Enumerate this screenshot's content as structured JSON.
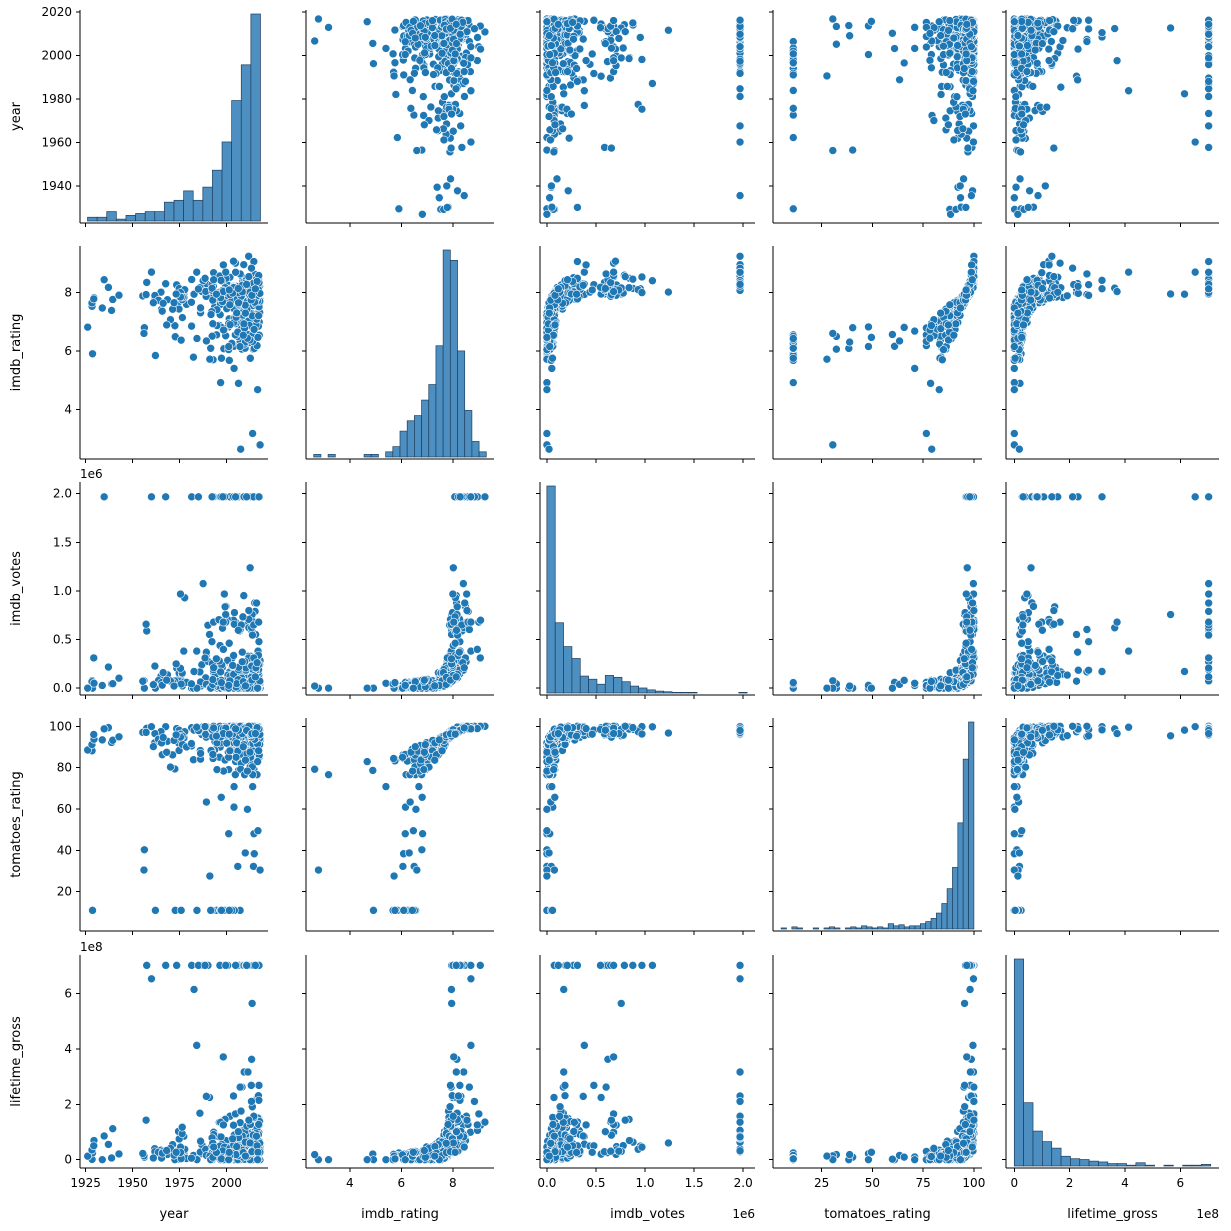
{
  "chart_data": {
    "type": "scatter",
    "layout": "pairplot",
    "variables": [
      "year",
      "imdb_rating",
      "imdb_votes",
      "tomatoes_rating",
      "lifetime_gross"
    ],
    "axes": {
      "year": {
        "range": [
          1922,
          2022
        ],
        "ticks": [
          1925,
          1950,
          1975,
          2000
        ],
        "tick_labels": [
          "1925",
          "1950",
          "1975",
          "2000"
        ],
        "diag_ticks": [
          1940,
          1960,
          1980,
          2000,
          2020
        ],
        "diag_tick_labels": [
          "1940",
          "1960",
          "1980",
          "2000",
          "2020"
        ],
        "diag_range": [
          1923,
          2021
        ],
        "offset": ""
      },
      "imdb_rating": {
        "range": [
          2.3,
          9.6
        ],
        "ticks": [
          4,
          6,
          8
        ],
        "tick_labels": [
          "4",
          "6",
          "8"
        ],
        "offset": ""
      },
      "imdb_votes": {
        "range": [
          -0.07,
          2.12
        ],
        "ticks": [
          0.0,
          0.5,
          1.0,
          1.5,
          2.0
        ],
        "tick_labels": [
          "0.0",
          "0.5",
          "1.0",
          "1.5",
          "2.0"
        ],
        "offset": "1e6"
      },
      "tomatoes_rating": {
        "range": [
          1,
          104
        ],
        "ticks": [
          20,
          40,
          60,
          80,
          100
        ],
        "tick_labels": [
          "20",
          "40",
          "60",
          "80",
          "100"
        ],
        "xticks": [
          25,
          50,
          75,
          100
        ],
        "xtick_labels": [
          "25",
          "50",
          "75",
          "100"
        ],
        "offset": ""
      },
      "lifetime_gross": {
        "range": [
          -0.3,
          7.4
        ],
        "ticks": [
          0,
          2,
          4,
          6
        ],
        "tick_labels": [
          "0",
          "2",
          "4",
          "6"
        ],
        "offset": "1e8"
      }
    },
    "histograms": {
      "year": {
        "start": 1926,
        "end": 2018,
        "counts": [
          2,
          2,
          5,
          1,
          3,
          4,
          5,
          5,
          10,
          11,
          16,
          11,
          18,
          27,
          42,
          64,
          83,
          110
        ]
      },
      "imdb_rating": {
        "start": 2.6,
        "end": 9.3,
        "counts": [
          1,
          0,
          1,
          0,
          0,
          0,
          0,
          1,
          1,
          0,
          2,
          4,
          10,
          14,
          16,
          22,
          28,
          43,
          80,
          76,
          41,
          18,
          6,
          2
        ]
      },
      "imdb_votes": {
        "start": 0,
        "end": 2.04,
        "counts": [
          330,
          112,
          74,
          55,
          27,
          22,
          14,
          28,
          25,
          18,
          11,
          8,
          5,
          3,
          2,
          1,
          1,
          1,
          0,
          0,
          0,
          0,
          0,
          1
        ]
      },
      "tomatoes_rating": {
        "start": 5,
        "end": 100,
        "counts": [
          1,
          0,
          2,
          1,
          0,
          0,
          1,
          0,
          1,
          2,
          1,
          0,
          1,
          2,
          1,
          3,
          2,
          1,
          2,
          1,
          5,
          3,
          4,
          2,
          3,
          3,
          5,
          7,
          10,
          15,
          24,
          38,
          58,
          100,
          160,
          195
        ]
      },
      "lifetime_gross": {
        "start": 0,
        "end": 7.1,
        "counts": [
          255,
          78,
          43,
          30,
          22,
          12,
          9,
          8,
          6,
          5,
          3,
          3,
          1,
          4,
          1,
          0,
          1,
          0,
          1,
          1,
          2
        ]
      }
    },
    "points_per_panel": 420,
    "color": "#1f77b4",
    "hist_color": "#4c8fc0"
  }
}
